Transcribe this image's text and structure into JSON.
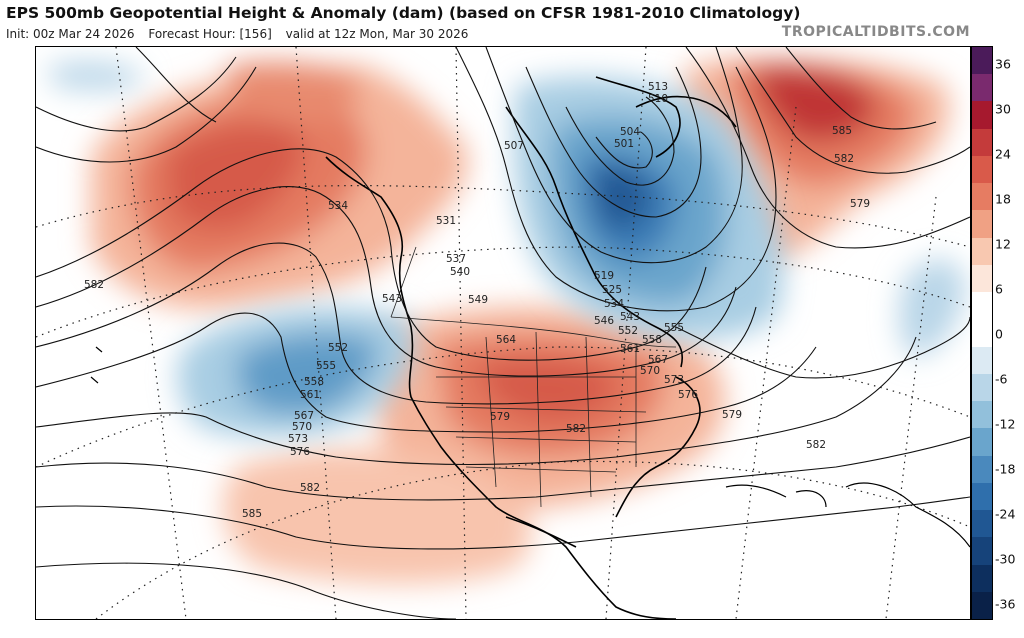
{
  "header": {
    "title": "EPS 500mb Geopotential Height & Anomaly (dam) (based on CFSR 1981-2010 Climatology)",
    "init": "Init: 00z Mar 24 2026",
    "forecast_hour": "Forecast Hour: [156]",
    "valid": "valid at 12z Mon, Mar 30 2026",
    "site": "TROPICALTIDBITS.COM"
  },
  "colorbar": {
    "ticks": [
      "36",
      "30",
      "24",
      "18",
      "12",
      "6",
      "0",
      "-6",
      "-12",
      "-18",
      "-24",
      "-30",
      "-36"
    ],
    "colors": [
      "#4b1b5a",
      "#7a2a6e",
      "#a6192e",
      "#c43b3b",
      "#d95a4a",
      "#e67c62",
      "#f0a184",
      "#f8c8b0",
      "#fce6da",
      "#ffffff",
      "#ffffff",
      "#dceaf3",
      "#b9d6e8",
      "#92c0db",
      "#6aa5cc",
      "#4a89bd",
      "#2f6fac",
      "#205793",
      "#16437a",
      "#0d2f5e",
      "#0a2148"
    ]
  },
  "contour_labels": [
    {
      "text": "582"
    },
    {
      "text": "534"
    },
    {
      "text": "531"
    },
    {
      "text": "507"
    },
    {
      "text": "504"
    },
    {
      "text": "501"
    },
    {
      "text": "513"
    },
    {
      "text": "510"
    },
    {
      "text": "537"
    },
    {
      "text": "540"
    },
    {
      "text": "543"
    },
    {
      "text": "549"
    },
    {
      "text": "552"
    },
    {
      "text": "555"
    },
    {
      "text": "558"
    },
    {
      "text": "561"
    },
    {
      "text": "564"
    },
    {
      "text": "567"
    },
    {
      "text": "570"
    },
    {
      "text": "573"
    },
    {
      "text": "576"
    },
    {
      "text": "579"
    },
    {
      "text": "582"
    },
    {
      "text": "585"
    },
    {
      "text": "519"
    },
    {
      "text": "525"
    },
    {
      "text": "534"
    },
    {
      "text": "546"
    },
    {
      "text": "543"
    },
    {
      "text": "552"
    },
    {
      "text": "558"
    },
    {
      "text": "561"
    },
    {
      "text": "555"
    },
    {
      "text": "567"
    },
    {
      "text": "570"
    },
    {
      "text": "573"
    },
    {
      "text": "576"
    },
    {
      "text": "579"
    },
    {
      "text": "582"
    },
    {
      "text": "585"
    },
    {
      "text": "582"
    },
    {
      "text": "579"
    },
    {
      "text": "582"
    },
    {
      "text": "579"
    },
    {
      "text": "582"
    },
    {
      "text": "585"
    }
  ]
}
